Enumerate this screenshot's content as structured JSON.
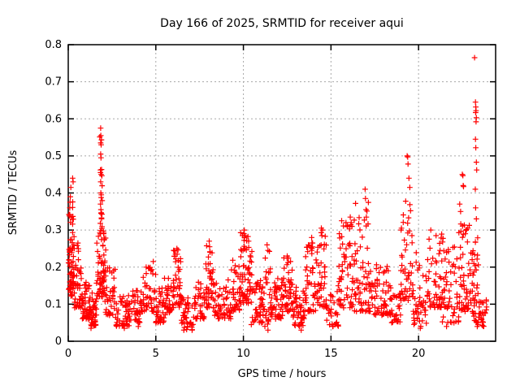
{
  "figure": {
    "title": "Day 166 of 2025, SRMTID for receiver aqui",
    "xlabel": "GPS time / hours",
    "ylabel": "SRMTID / TECUs"
  },
  "chart_data": {
    "type": "scatter",
    "title": "Day 166 of 2025, SRMTID for receiver aqui",
    "xlabel": "GPS time / hours",
    "ylabel": "SRMTID / TECUs",
    "series_name": "SRMTID",
    "xlim": [
      0,
      24.4
    ],
    "ylim": [
      0,
      0.8
    ],
    "xticks": [
      0,
      5,
      10,
      15,
      20
    ],
    "yticks": [
      0,
      0.1,
      0.2,
      0.3,
      0.4,
      0.5,
      0.6,
      0.7,
      0.8
    ],
    "grid": true,
    "grid_style": "dotted",
    "legend": "none",
    "marker": "plus",
    "marker_color": "#ff0000",
    "grid_color": "#a8a8a8",
    "axis_color": "#000000",
    "background": "#ffffff",
    "render_seed": 166,
    "baseline_bands": [
      [
        0.02,
        0.12,
        0.14,
        0.36,
        28
      ],
      [
        0.12,
        0.35,
        0.12,
        0.33,
        45
      ],
      [
        0.12,
        0.3,
        0.33,
        0.44,
        6
      ],
      [
        0.35,
        0.8,
        0.09,
        0.22,
        40
      ],
      [
        0.5,
        0.62,
        0.22,
        0.27,
        4
      ],
      [
        0.8,
        1.3,
        0.06,
        0.17,
        45
      ],
      [
        1.3,
        1.62,
        0.04,
        0.13,
        30
      ],
      [
        1.62,
        2.08,
        0.12,
        0.3,
        60
      ],
      [
        1.8,
        1.95,
        0.3,
        0.58,
        14
      ],
      [
        1.98,
        2.15,
        0.17,
        0.29,
        10
      ],
      [
        2.1,
        2.7,
        0.07,
        0.2,
        40
      ],
      [
        2.7,
        3.6,
        0.04,
        0.13,
        55
      ],
      [
        3.6,
        4.2,
        0.05,
        0.14,
        40
      ],
      [
        4.2,
        5.0,
        0.08,
        0.21,
        55
      ],
      [
        5.0,
        5.5,
        0.05,
        0.15,
        35
      ],
      [
        5.5,
        6.0,
        0.07,
        0.17,
        35
      ],
      [
        6.0,
        6.45,
        0.09,
        0.25,
        35
      ],
      [
        6.45,
        7.2,
        0.03,
        0.13,
        45
      ],
      [
        7.2,
        7.85,
        0.06,
        0.16,
        40
      ],
      [
        7.85,
        8.3,
        0.09,
        0.27,
        35
      ],
      [
        8.3,
        9.3,
        0.06,
        0.17,
        55
      ],
      [
        9.3,
        9.8,
        0.08,
        0.22,
        35
      ],
      [
        9.8,
        10.5,
        0.1,
        0.3,
        60
      ],
      [
        10.5,
        11.1,
        0.05,
        0.17,
        40
      ],
      [
        11.1,
        11.6,
        0.04,
        0.26,
        40
      ],
      [
        11.6,
        12.25,
        0.06,
        0.17,
        40
      ],
      [
        12.25,
        12.8,
        0.08,
        0.23,
        40
      ],
      [
        12.8,
        13.5,
        0.04,
        0.15,
        45
      ],
      [
        13.5,
        14.15,
        0.08,
        0.28,
        45
      ],
      [
        14.15,
        14.75,
        0.09,
        0.3,
        45
      ],
      [
        14.75,
        15.45,
        0.04,
        0.15,
        40
      ],
      [
        15.45,
        16.35,
        0.09,
        0.33,
        60
      ],
      [
        16.35,
        17.35,
        0.08,
        0.38,
        70
      ],
      [
        17.35,
        18.45,
        0.07,
        0.21,
        55
      ],
      [
        18.45,
        19.0,
        0.05,
        0.14,
        30
      ],
      [
        19.0,
        19.7,
        0.11,
        0.38,
        55
      ],
      [
        19.7,
        20.45,
        0.04,
        0.24,
        45
      ],
      [
        20.45,
        21.35,
        0.09,
        0.3,
        60
      ],
      [
        21.35,
        22.3,
        0.05,
        0.28,
        55
      ],
      [
        22.3,
        23.0,
        0.08,
        0.33,
        50
      ],
      [
        23.05,
        23.45,
        0.05,
        0.3,
        45
      ],
      [
        23.45,
        23.9,
        0.04,
        0.13,
        25
      ]
    ],
    "peak_points": [
      [
        0.25,
        0.44
      ],
      [
        0.28,
        0.43
      ],
      [
        0.15,
        0.415
      ],
      [
        0.12,
        0.39
      ],
      [
        0.1,
        0.375
      ],
      [
        0.55,
        0.265
      ],
      [
        1.85,
        0.575
      ],
      [
        1.86,
        0.555
      ],
      [
        1.85,
        0.535
      ],
      [
        1.88,
        0.53
      ],
      [
        1.85,
        0.505
      ],
      [
        1.87,
        0.495
      ],
      [
        1.84,
        0.455
      ],
      [
        1.88,
        0.45
      ],
      [
        1.85,
        0.43
      ],
      [
        1.86,
        0.4
      ],
      [
        1.89,
        0.395
      ],
      [
        1.84,
        0.37
      ],
      [
        1.87,
        0.345
      ],
      [
        1.9,
        0.33
      ],
      [
        2.02,
        0.29
      ],
      [
        4.85,
        0.215
      ],
      [
        6.2,
        0.25
      ],
      [
        6.22,
        0.235
      ],
      [
        8.05,
        0.27
      ],
      [
        8.07,
        0.255
      ],
      [
        8.1,
        0.24
      ],
      [
        9.95,
        0.285
      ],
      [
        10.05,
        0.3
      ],
      [
        10.1,
        0.285
      ],
      [
        10.3,
        0.27
      ],
      [
        11.35,
        0.26
      ],
      [
        11.4,
        0.245
      ],
      [
        12.5,
        0.23
      ],
      [
        13.9,
        0.28
      ],
      [
        13.95,
        0.265
      ],
      [
        14.45,
        0.305
      ],
      [
        14.52,
        0.3
      ],
      [
        14.48,
        0.285
      ],
      [
        16.1,
        0.335
      ],
      [
        16.15,
        0.32
      ],
      [
        16.2,
        0.31
      ],
      [
        16.95,
        0.41
      ],
      [
        16.97,
        0.385
      ],
      [
        17.0,
        0.355
      ],
      [
        17.02,
        0.335
      ],
      [
        19.0,
        0.3
      ],
      [
        19.35,
        0.5
      ],
      [
        19.38,
        0.497
      ],
      [
        19.4,
        0.478
      ],
      [
        19.45,
        0.44
      ],
      [
        19.5,
        0.415
      ],
      [
        20.7,
        0.3
      ],
      [
        21.0,
        0.285
      ],
      [
        22.35,
        0.37
      ],
      [
        22.4,
        0.35
      ],
      [
        22.5,
        0.45
      ],
      [
        22.53,
        0.447
      ],
      [
        22.55,
        0.42
      ],
      [
        22.57,
        0.417
      ],
      [
        23.2,
        0.765
      ],
      [
        23.25,
        0.645
      ],
      [
        23.27,
        0.632
      ],
      [
        23.28,
        0.622
      ],
      [
        23.26,
        0.617
      ],
      [
        23.3,
        0.603
      ],
      [
        23.28,
        0.592
      ],
      [
        23.25,
        0.545
      ],
      [
        23.27,
        0.522
      ],
      [
        23.3,
        0.483
      ],
      [
        23.32,
        0.462
      ],
      [
        23.24,
        0.41
      ],
      [
        23.26,
        0.36
      ],
      [
        23.3,
        0.33
      ]
    ],
    "low_points": [
      [
        1.3,
        0.035
      ],
      [
        3.2,
        0.035
      ],
      [
        4.0,
        0.04
      ],
      [
        6.6,
        0.03
      ],
      [
        10.45,
        0.045
      ],
      [
        11.4,
        0.03
      ],
      [
        13.3,
        0.03
      ],
      [
        15.1,
        0.04
      ],
      [
        20.1,
        0.035
      ],
      [
        21.6,
        0.04
      ],
      [
        23.35,
        0.04
      ],
      [
        23.4,
        0.045
      ]
    ]
  }
}
